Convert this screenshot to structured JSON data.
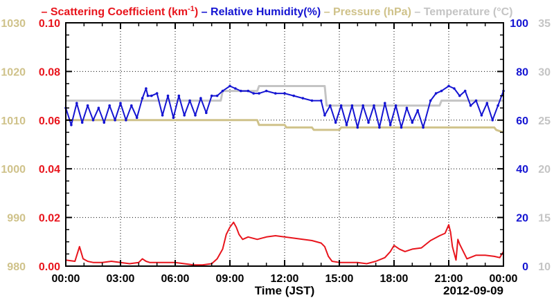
{
  "chart_data": {
    "type": "line",
    "legend": [
      {
        "marker": "–",
        "label": "Scattering Coefficient (km",
        "sup": "-1",
        "label_end": ")",
        "color": "#e8141c"
      },
      {
        "marker": "–",
        "label": "Relative Humidity(%)",
        "color": "#1414d2"
      },
      {
        "marker": "–",
        "label": "Pressure (hPa)",
        "color": "#cfc28a"
      },
      {
        "marker": "–",
        "label": "Temperature (°C)",
        "color": "#c4c4c4"
      }
    ],
    "xlabel": "Time (JST)",
    "date_label": "2012-09-09",
    "x_range_hours": [
      0,
      24
    ],
    "x_ticks": [
      "00:00",
      "03:00",
      "06:00",
      "09:00",
      "12:00",
      "15:00",
      "18:00",
      "21:00",
      "00:00"
    ],
    "grid": true,
    "axes": {
      "scattering": {
        "range": [
          0,
          0.1
        ],
        "ticks": [
          "0.00",
          "0.02",
          "0.04",
          "0.06",
          "0.08",
          "0.10"
        ],
        "color": "#e8141c"
      },
      "pressure": {
        "range": [
          980,
          1030
        ],
        "ticks": [
          "980",
          "990",
          "1000",
          "1010",
          "1020",
          "1030"
        ],
        "color": "#cfc28a"
      },
      "humidity": {
        "range": [
          0,
          100
        ],
        "ticks": [
          "0",
          "20",
          "40",
          "60",
          "80",
          "100"
        ],
        "color": "#1414d2"
      },
      "temperature": {
        "range": [
          10,
          35
        ],
        "ticks": [
          "10",
          "15",
          "20",
          "25",
          "30",
          "35"
        ],
        "color": "#c4c4c4"
      }
    },
    "series": [
      {
        "name": "Scattering Coefficient",
        "axis": "scattering",
        "color": "#e8141c",
        "x": [
          0,
          0.5,
          0.75,
          0.95,
          1.2,
          1.5,
          2,
          2.5,
          3,
          3.5,
          4,
          4.2,
          4.4,
          4.6,
          5,
          5.5,
          6,
          6.5,
          7,
          7.5,
          8,
          8.3,
          8.6,
          8.8,
          9,
          9.1,
          9.2,
          9.35,
          9.5,
          9.7,
          10,
          10.5,
          11,
          11.5,
          12,
          12.5,
          13,
          13.5,
          14,
          14.2,
          14.4,
          14.6,
          15,
          15.5,
          16,
          16.5,
          17,
          17.5,
          17.8,
          18,
          18.3,
          18.6,
          19,
          19.5,
          20,
          20.5,
          20.8,
          21,
          21.1,
          21.2,
          21.4,
          21.5,
          21.6,
          22,
          22.5,
          23,
          23.5,
          23.8,
          24
        ],
        "y": [
          0.0025,
          0.002,
          0.008,
          0.003,
          0.002,
          0.0015,
          0.0015,
          0.002,
          0.0015,
          0.001,
          0.0015,
          0.003,
          0.002,
          0.0015,
          0.0015,
          0.0015,
          0.0015,
          0.001,
          0.0005,
          0.0005,
          0.001,
          0.003,
          0.007,
          0.013,
          0.016,
          0.017,
          0.018,
          0.016,
          0.013,
          0.011,
          0.012,
          0.011,
          0.012,
          0.0125,
          0.012,
          0.0115,
          0.011,
          0.0105,
          0.0095,
          0.008,
          0.004,
          0.002,
          0.0015,
          0.0015,
          0.0015,
          0.001,
          0.002,
          0.0035,
          0.006,
          0.0085,
          0.007,
          0.006,
          0.007,
          0.0075,
          0.0105,
          0.0125,
          0.0135,
          0.017,
          0.014,
          0.008,
          0.0025,
          0.011,
          0.009,
          0.003,
          0.0045,
          0.0045,
          0.004,
          0.0035,
          0.006
        ]
      },
      {
        "name": "Relative Humidity",
        "axis": "humidity",
        "color": "#1414d2",
        "x": [
          0,
          0.3,
          0.6,
          0.9,
          1.2,
          1.5,
          1.8,
          2.1,
          2.4,
          2.7,
          3,
          3.3,
          3.6,
          3.9,
          4.2,
          4.4,
          4.5,
          4.7,
          5,
          5.3,
          5.6,
          5.9,
          6.2,
          6.5,
          6.8,
          7.1,
          7.4,
          7.7,
          8,
          8.3,
          8.6,
          9,
          9.3,
          9.6,
          10,
          10.3,
          10.6,
          11,
          11.5,
          12,
          12.5,
          13,
          13.5,
          14,
          14.2,
          14.5,
          14.8,
          15.1,
          15.4,
          15.7,
          16,
          16.3,
          16.6,
          16.9,
          17.2,
          17.5,
          17.8,
          18.1,
          18.4,
          18.7,
          19,
          19.3,
          19.6,
          20,
          20.3,
          20.6,
          21,
          21.3,
          21.6,
          21.9,
          22.2,
          22.5,
          22.8,
          23.1,
          23.4,
          23.7,
          24
        ],
        "y": [
          65,
          58,
          67,
          59,
          66,
          60,
          65,
          59,
          66,
          60,
          67,
          60,
          66,
          61,
          69,
          73,
          70,
          70,
          71,
          62,
          70,
          61,
          70,
          62,
          68,
          62,
          69,
          63,
          70,
          70,
          72,
          74,
          73,
          72,
          72,
          71,
          71,
          72,
          71,
          71,
          70,
          69,
          68,
          68,
          62,
          66,
          59,
          66,
          58,
          66,
          57,
          66,
          59,
          66,
          57,
          67,
          58,
          66,
          57,
          65,
          59,
          64,
          57,
          68,
          71,
          72,
          74,
          73,
          70,
          72,
          66,
          68,
          62,
          67,
          60,
          66,
          72
        ]
      },
      {
        "name": "Pressure",
        "axis": "pressure",
        "color": "#cfc28a",
        "x": [
          0,
          10.5,
          10.6,
          12,
          12.1,
          13.5,
          13.6,
          15,
          15.1,
          17.5,
          17.6,
          23.5,
          23.6,
          24
        ],
        "y": [
          1010,
          1010,
          1009,
          1009,
          1008.5,
          1008.5,
          1008,
          1008,
          1008.5,
          1008.5,
          1008.5,
          1008.5,
          1008,
          1007.5
        ]
      },
      {
        "name": "Temperature",
        "axis": "temperature",
        "color": "#c4c4c4",
        "x": [
          0,
          8.5,
          8.6,
          10.5,
          10.6,
          14.2,
          14.3,
          20.5,
          20.6,
          24
        ],
        "y": [
          27,
          27,
          28,
          28,
          28.5,
          28.5,
          26.5,
          26.5,
          27,
          27
        ]
      }
    ]
  }
}
